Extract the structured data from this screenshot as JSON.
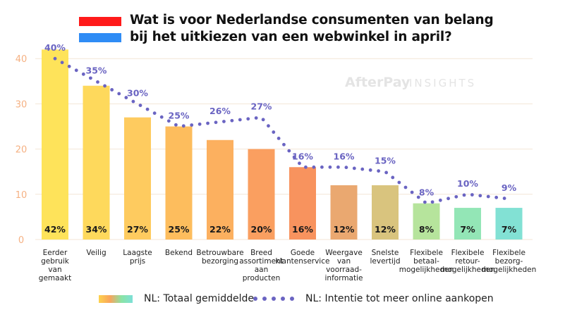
{
  "title": {
    "line1": "Wat is voor Nederlandse consumenten van belang",
    "line2": "bij het uitkiezen van een webwinkel in april?"
  },
  "watermark": "AfterPay INSIGHTS",
  "colors": {
    "flag_red": "#ff1a1a",
    "flag_blue": "#2f8cf5",
    "axis_labels": "#f5b183",
    "dot_line": "#6a64c2",
    "gridline": "#f3e6d6"
  },
  "legend": {
    "bars": "NL: Totaal gemiddelde",
    "dots": "NL: Intentie tot meer online aankopen"
  },
  "chart_data": {
    "type": "bar",
    "ylim": [
      0,
      45
    ],
    "yticks": [
      0,
      10,
      20,
      30,
      40
    ],
    "grid": true,
    "legend_position": "bottom",
    "categories": [
      [
        "Eerder",
        "gebruik",
        "van",
        "gemaakt"
      ],
      [
        "Veilig"
      ],
      [
        "Laagste",
        "prijs"
      ],
      [
        "Bekend"
      ],
      [
        "Betrouwbare",
        "bezorging"
      ],
      [
        "Breed",
        "assortiment",
        "aan",
        "producten"
      ],
      [
        "Goede",
        "klantenservice"
      ],
      [
        "Weergave",
        "van",
        "voorraad-",
        "informatie"
      ],
      [
        "Snelste",
        "levertijd"
      ],
      [
        "Flexibele",
        "betaal-",
        "mogelijkheden"
      ],
      [
        "Flexibele",
        "retour-",
        "mogelijkheden"
      ],
      [
        "Flexibele",
        "bezorg-",
        "mogelijkheden"
      ]
    ],
    "series": [
      {
        "name": "NL: Totaal gemiddelde",
        "values": [
          42,
          34,
          27,
          25,
          22,
          20,
          16,
          12,
          12,
          8,
          7,
          7
        ],
        "labels": [
          "42%",
          "34%",
          "27%",
          "25%",
          "22%",
          "20%",
          "16%",
          "12%",
          "12%",
          "8%",
          "7%",
          "7%"
        ],
        "colors": [
          "#fee35a",
          "#fed95c",
          "#fecb5f",
          "#fdbd5d",
          "#fcb05f",
          "#fa9f60",
          "#f8935e",
          "#eaa870",
          "#d9c47e",
          "#b6e49c",
          "#93e6b6",
          "#82e1d4"
        ]
      },
      {
        "name": "NL: Intentie tot meer online aankopen",
        "values": [
          40,
          35,
          30,
          25,
          26,
          27,
          16,
          16,
          15,
          8,
          10,
          9
        ],
        "labels": [
          "40%",
          "35%",
          "30%",
          "25%",
          "26%",
          "27%",
          "16%",
          "16%",
          "15%",
          "8%",
          "10%",
          "9%"
        ]
      }
    ]
  }
}
